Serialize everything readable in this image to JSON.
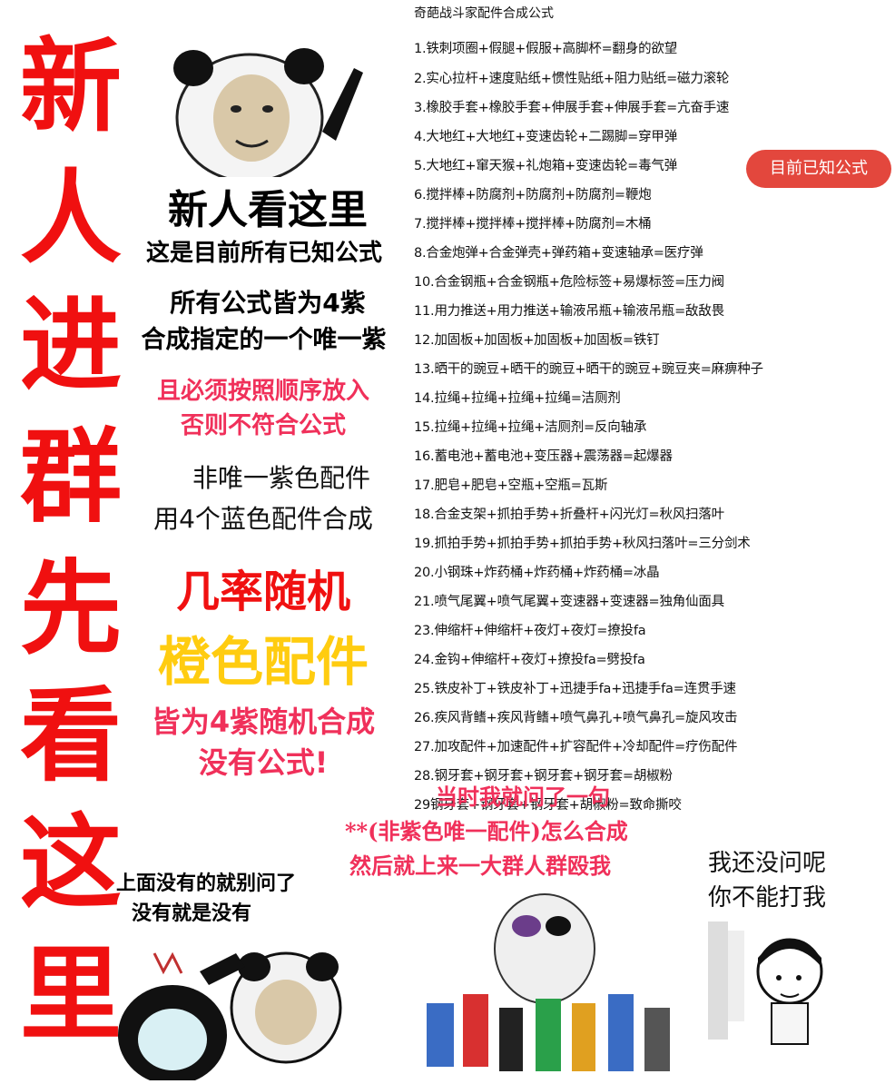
{
  "side_banner": [
    "新",
    "人",
    "进",
    "群",
    "先",
    "看",
    "这",
    "里"
  ],
  "header_title": "奇葩战斗家配件合成公式",
  "badge": "目前已知公式",
  "left_text": {
    "headline": "新人看这里",
    "line1": "这是目前所有已知公式",
    "line2": "所有公式皆为4紫",
    "line3": "合成指定的一个唯一紫",
    "line4": "且必须按照顺序放入",
    "line5": "否则不符合公式",
    "line6": "非唯一紫色配件",
    "line7": "用4个蓝色配件合成",
    "line8": "几率随机",
    "line9": "橙色配件",
    "line10": "皆为4紫随机合成",
    "line11": "没有公式!"
  },
  "formulas": [
    "1.铁刺项圈+假腿+假服+高脚杯=翻身的欲望",
    "2.实心拉杆+速度贴纸+惯性贴纸+阻力贴纸=磁力滚轮",
    "3.橡胶手套+橡胶手套+伸展手套+伸展手套=亢奋手速",
    "4.大地红+大地红+变速齿轮+二踢脚=穿甲弹",
    "5.大地红+窜天猴+礼炮箱+变速齿轮=毒气弹",
    "6.搅拌棒+防腐剂+防腐剂+防腐剂=鞭炮",
    "7.搅拌棒+搅拌棒+搅拌棒+防腐剂=木桶",
    "8.合金炮弹+合金弹壳+弹药箱+变速轴承=医疗弹",
    "10.合金钢瓶+合金钢瓶+危险标签+易爆标签=压力阀",
    "11.用力推送+用力推送+输液吊瓶+输液吊瓶=敌敌畏",
    "12.加固板+加固板+加固板+加固板=铁钉",
    "13.晒干的豌豆+晒干的豌豆+晒干的豌豆+豌豆夹=麻痹种子",
    "14.拉绳+拉绳+拉绳+拉绳=洁厕剂",
    "15.拉绳+拉绳+拉绳+洁厕剂=反向轴承",
    "16.蓄电池+蓄电池+变压器+震荡器=起爆器",
    "17.肥皂+肥皂+空瓶+空瓶=瓦斯",
    "18.合金支架+抓拍手势+折叠杆+闪光灯=秋风扫落叶",
    "19.抓拍手势+抓拍手势+抓拍手势+秋风扫落叶=三分剑术",
    "20.小钢珠+炸药桶+炸药桶+炸药桶=冰晶",
    "21.喷气尾翼+喷气尾翼+变速器+变速器=独角仙面具",
    "23.伸缩杆+伸缩杆+夜灯+夜灯=撩投fa",
    "24.金钩+伸缩杆+夜灯+撩投fa=劈投fa",
    "25.铁皮补丁+铁皮补丁+迅捷手fa+迅捷手fa=连贯手速",
    "26.疾风背鳍+疾风背鳍+喷气鼻孔+喷气鼻孔=旋风攻击",
    "27.加攻配件+加速配件+扩容配件+冷却配件=疗伤配件",
    "28.钢牙套+钢牙套+钢牙套+钢牙套=胡椒粉",
    "29钢牙套+钢牙套+钢牙套+胡椒粉=致命撕咬"
  ],
  "bottom": {
    "left_caption1": "上面没有的就别问了",
    "left_caption2": "没有就是没有",
    "mid_line1": "当时我就问了一句",
    "mid_line2": "**(非紫色唯一配件)怎么合成",
    "mid_line3": "然后就上来一大群人群殴我",
    "right_line1": "我还没问呢",
    "right_line2": "你不能打我"
  },
  "colors": {
    "banner_red": "#f01010",
    "pink": "#f0305a",
    "orange_yellow": "#ffcc10",
    "badge_bg": "#e3473d"
  }
}
